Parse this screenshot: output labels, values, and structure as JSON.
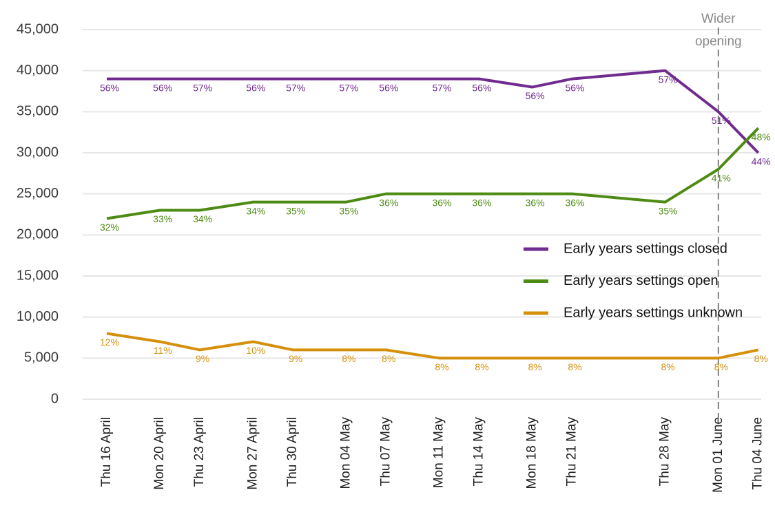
{
  "chart_data": {
    "type": "line",
    "x": [
      "Thu 16 April",
      "Mon 20 April",
      "Thu 23 April",
      "Mon 27 April",
      "Thu 30 April",
      "Mon 04 May",
      "Thu 07 May",
      "Mon 11 May",
      "Thu 14 May",
      "Mon 18 May",
      "Thu 21 May",
      "Thu 28 May",
      "Mon 01 June",
      "Thu 04 June"
    ],
    "series": [
      {
        "name": "Early years settings closed",
        "color": "#702b8e",
        "values": [
          39000,
          39000,
          39000,
          39000,
          39000,
          39000,
          39000,
          39000,
          39000,
          38000,
          39000,
          40000,
          35000,
          30000
        ],
        "labels": [
          "56%",
          "56%",
          "57%",
          "56%",
          "57%",
          "57%",
          "56%",
          "57%",
          "56%",
          "56%",
          "56%",
          "57%",
          "51%",
          "44%"
        ]
      },
      {
        "name": "Early years settings open",
        "color": "#4e8b14",
        "values": [
          22000,
          23000,
          23000,
          24000,
          24000,
          24000,
          25000,
          25000,
          25000,
          25000,
          25000,
          24000,
          28000,
          33000
        ],
        "labels": [
          "32%",
          "33%",
          "34%",
          "34%",
          "35%",
          "35%",
          "36%",
          "36%",
          "36%",
          "36%",
          "36%",
          "35%",
          "41%",
          "48%"
        ]
      },
      {
        "name": "Early years settings unknown",
        "color": "#d4900c",
        "values": [
          8000,
          7000,
          6000,
          7000,
          6000,
          6000,
          6000,
          5000,
          5000,
          5000,
          5000,
          5000,
          5000,
          6000
        ],
        "labels": [
          "12%",
          "11%",
          "9%",
          "10%",
          "9%",
          "8%",
          "8%",
          "8%",
          "8%",
          "8%",
          "8%",
          "8%",
          "8%",
          "8%"
        ]
      }
    ],
    "ylim": [
      0,
      45000
    ],
    "yticks": [
      0,
      {
        "value": 5000,
        "label": "5,000"
      },
      {
        "value": 10000,
        "label": "10,000"
      },
      {
        "value": 15000,
        "label": "15,000"
      },
      {
        "value": 20000,
        "label": "20,000"
      },
      {
        "value": 25000,
        "label": "25,000"
      },
      {
        "value": 30000,
        "label": "30,000"
      },
      {
        "value": 35000,
        "label": "35,000"
      },
      {
        "value": 40000,
        "label": "40,000"
      },
      {
        "value": 45000,
        "label": "45,000"
      }
    ],
    "grid": true,
    "annotation": {
      "x": "Mon 01 June",
      "lines": [
        "Wider",
        "opening"
      ]
    },
    "legend_position": "right"
  }
}
